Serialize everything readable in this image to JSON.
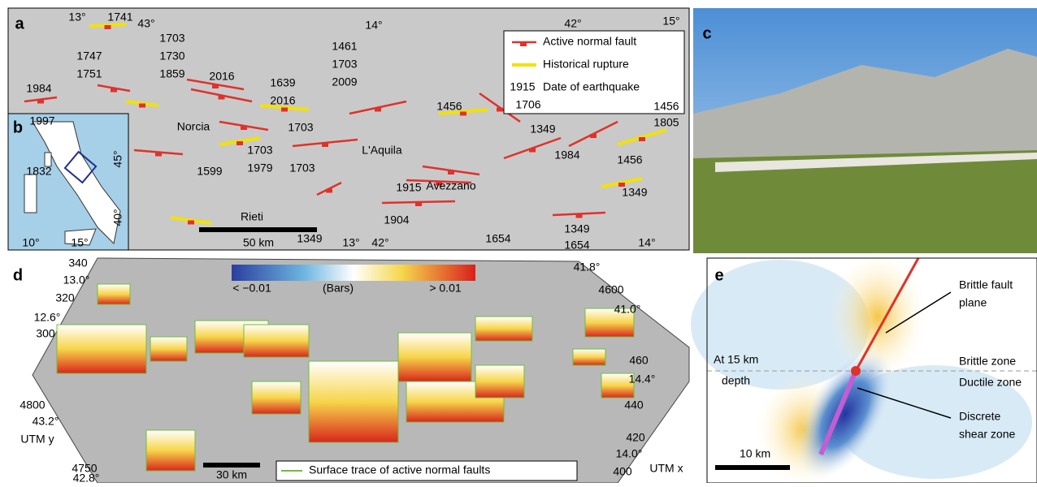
{
  "panel_a": {
    "label": "a",
    "legend": [
      "Active normal fault",
      "Historical rupture"
    ],
    "legend_date": "1915",
    "legend_date_text": "Date of earthquake",
    "coordinates": [
      "13°",
      "43°",
      "14°",
      "42°",
      "15°",
      "13°",
      "42°",
      "14°"
    ],
    "dates": [
      "1741",
      "1703",
      "1730",
      "1859",
      "1747",
      "1751",
      "1984",
      "2016",
      "1639",
      "2016",
      "1461",
      "1703",
      "2009",
      "1997",
      "1703",
      "1703",
      "1979",
      "1599",
      "1703",
      "1456",
      "1706",
      "1349",
      "1456",
      "1805",
      "1832",
      "1984",
      "1456",
      "1915",
      "1904",
      "1349",
      "1349",
      "1654",
      "1349",
      "1654"
    ],
    "places": [
      "Norcia",
      "L'Aquila",
      "Avezzano",
      "Rieti"
    ],
    "scale": "50 km"
  },
  "panel_b": {
    "label": "b",
    "coordinates": [
      "45°",
      "40°",
      "10°",
      "15°"
    ]
  },
  "panel_c": {
    "label": "c"
  },
  "panel_d": {
    "label": "d",
    "colorbar": [
      "< −0.01",
      "(Bars)",
      "> 0.01"
    ],
    "axis_labels": [
      "340",
      "13.0°",
      "320",
      "12.6°",
      "300",
      "4800",
      "43.2°",
      "UTM y",
      "4750",
      "42.8°",
      "41.8°",
      "4600",
      "41.0°",
      "460",
      "14.4°",
      "440",
      "420",
      "14.0°",
      "400",
      "UTM x"
    ],
    "scale": "30 km",
    "legend": "Surface trace of active normal faults"
  },
  "panel_e": {
    "label": "e",
    "texts": [
      "Brittle fault",
      "plane",
      "At 15 km",
      "depth",
      "Brittle zone",
      "Ductile zone",
      "Discrete",
      "shear zone",
      "10 km"
    ]
  }
}
